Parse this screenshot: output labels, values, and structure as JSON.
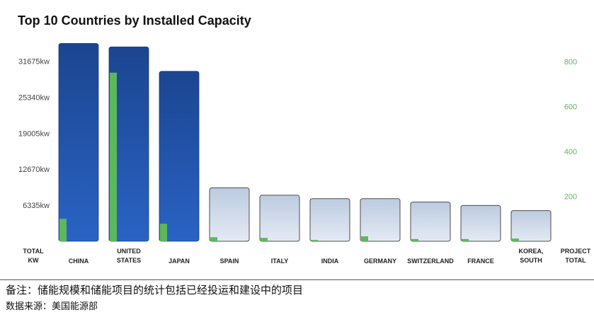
{
  "chart_data": {
    "type": "bar",
    "title": "Top 10 Countries by Installed Capacity",
    "categories": [
      [
        "CHINA"
      ],
      [
        "UNITED",
        "STATES"
      ],
      [
        "JAPAN"
      ],
      [
        "SPAIN"
      ],
      [
        "ITALY"
      ],
      [
        "INDIA"
      ],
      [
        "GERMANY"
      ],
      [
        "SWITZERLAND"
      ],
      [
        "FRANCE"
      ],
      [
        "KOREA,",
        "SOUTH"
      ]
    ],
    "series": [
      {
        "axis": "left",
        "color_dark": "#1f4e9a",
        "color_light": "#c4d1e4",
        "values": [
          34800,
          34200,
          29900,
          9400,
          8100,
          7500,
          7500,
          6900,
          6300,
          5400
        ]
      },
      {
        "axis": "right",
        "color": "#5cb85c",
        "values": [
          100,
          750,
          78,
          18,
          15,
          6,
          22,
          10,
          10,
          12
        ]
      }
    ],
    "left_axis": {
      "label": [
        "TOTAL",
        "KW"
      ],
      "ticks": [
        6335,
        12670,
        19005,
        25340,
        31675
      ],
      "tick_labels": [
        "6335kw",
        "12670kw",
        "19005kw",
        "25340kw",
        "31675kw"
      ],
      "range": [
        0,
        35600
      ]
    },
    "right_axis": {
      "label": [
        "PROJECT",
        "TOTAL"
      ],
      "ticks": [
        200,
        400,
        600,
        800
      ],
      "tick_labels": [
        "200",
        "400",
        "600",
        "800"
      ],
      "range": [
        0,
        900
      ]
    },
    "grid": false,
    "legend": "none"
  },
  "footer": {
    "note": "备注：储能规模和储能项目的统计包括已经投运和建设中的项目",
    "source": "数据来源：美国能源部"
  }
}
